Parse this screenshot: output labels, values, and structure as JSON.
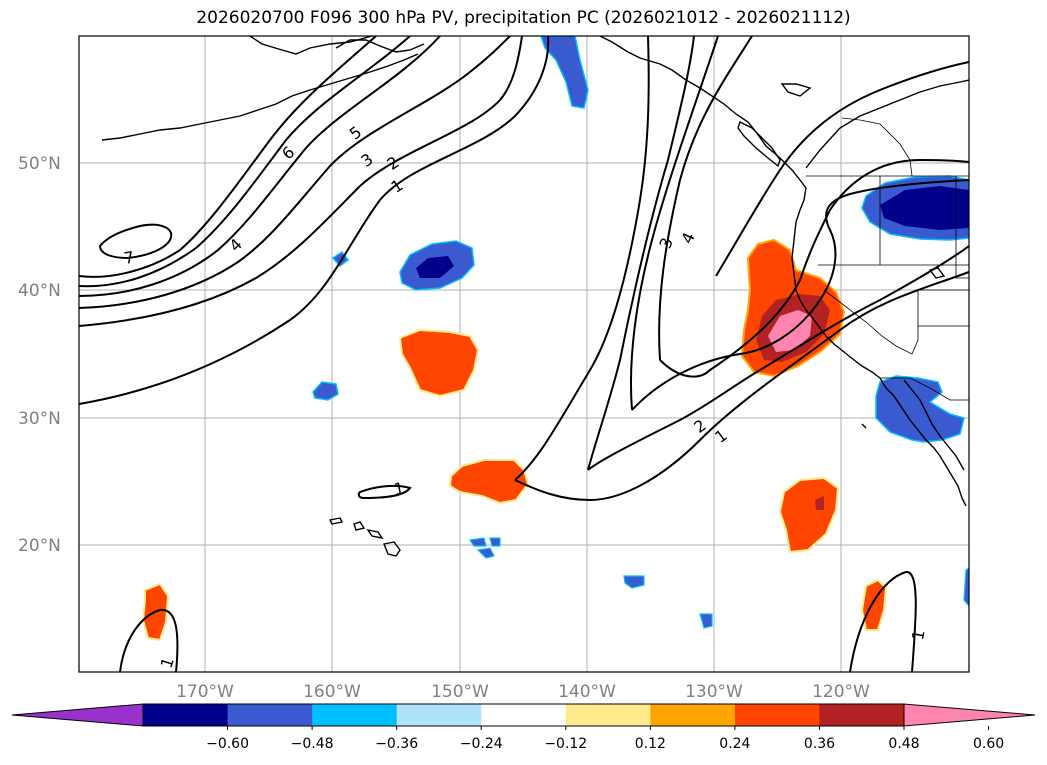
{
  "title": "2026020700 F096 300 hPa PV, precipitation PC (2026021012 - 2026021112)",
  "map": {
    "lon_labels": [
      "170°W",
      "160°W",
      "150°W",
      "140°W",
      "130°W",
      "120°W"
    ],
    "lat_labels": [
      "50°N",
      "40°N",
      "30°N",
      "20°N"
    ],
    "contour_labels": [
      "7",
      "6",
      "5",
      "4",
      "3",
      "2",
      "1",
      "3",
      "4",
      "2",
      "1",
      "1",
      "1",
      "1"
    ]
  },
  "colorbar": {
    "labels": [
      "−0.60",
      "−0.48",
      "−0.36",
      "−0.24",
      "−0.12",
      "0.12",
      "0.24",
      "0.36",
      "0.48",
      "0.60"
    ],
    "colors": [
      "#9932CC",
      "#00008B",
      "#3A5BCF",
      "#00BFFF",
      "#AEE3FA",
      "#FFFFFF",
      "#FFEA8C",
      "#FFA500",
      "#FF4500",
      "#B22222",
      "#FF85B0"
    ],
    "under_color": "#9932CC",
    "over_color": "#FF85B0"
  },
  "colors": {
    "tick_label": "#808080",
    "grid": "#b0b0b0",
    "coast": "#000000"
  }
}
